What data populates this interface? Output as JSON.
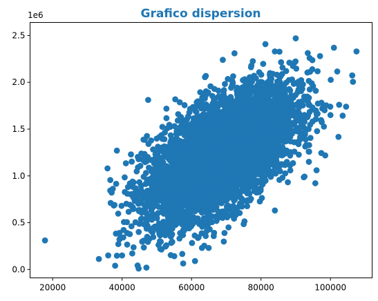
{
  "chart_data": {
    "type": "scatter",
    "title": "Grafico dispersion",
    "title_color": "#1f77b4",
    "marker_color": "#1f77b4",
    "xlabel": "",
    "ylabel": "",
    "xlim": [
      13500,
      112000
    ],
    "ylim": [
      -0.09,
      2.64
    ],
    "x_ticks": [
      20000,
      40000,
      60000,
      80000,
      100000
    ],
    "x_tick_labels": [
      "20000",
      "40000",
      "60000",
      "80000",
      "100000"
    ],
    "y_ticks": [
      0.0,
      0.5,
      1.0,
      1.5,
      2.0,
      2.5
    ],
    "y_tick_labels": [
      "0.0",
      "0.5",
      "1.0",
      "1.5",
      "2.0",
      "2.5"
    ],
    "y_offset_text": "1e6",
    "grid": false,
    "legend": "none",
    "distribution": {
      "approx_point_count": 5000,
      "x_mean": 68500,
      "x_std": 10600,
      "y_mean": 1.23,
      "y_std": 0.35,
      "correlation": 0.6
    },
    "notable_points": [
      {
        "x": 17800,
        "y": 0.31
      },
      {
        "x": 36000,
        "y": 0.15
      },
      {
        "x": 38000,
        "y": 0.04
      },
      {
        "x": 47000,
        "y": 0.02
      },
      {
        "x": 61000,
        "y": 0.09
      },
      {
        "x": 35800,
        "y": 1.08
      },
      {
        "x": 38500,
        "y": 1.27
      },
      {
        "x": 90000,
        "y": 2.47
      },
      {
        "x": 101000,
        "y": 2.37
      },
      {
        "x": 107500,
        "y": 2.33
      },
      {
        "x": 97000,
        "y": 2.28
      },
      {
        "x": 94000,
        "y": 2.26
      },
      {
        "x": 84000,
        "y": 2.33
      },
      {
        "x": 69000,
        "y": 2.24
      },
      {
        "x": 102500,
        "y": 1.76
      },
      {
        "x": 104500,
        "y": 1.74
      },
      {
        "x": 100000,
        "y": 1.65
      },
      {
        "x": 96000,
        "y": 1.06
      },
      {
        "x": 84000,
        "y": 0.63
      },
      {
        "x": 51000,
        "y": 0.22
      },
      {
        "x": 63000,
        "y": 0.23
      },
      {
        "x": 40000,
        "y": 0.15
      }
    ]
  }
}
